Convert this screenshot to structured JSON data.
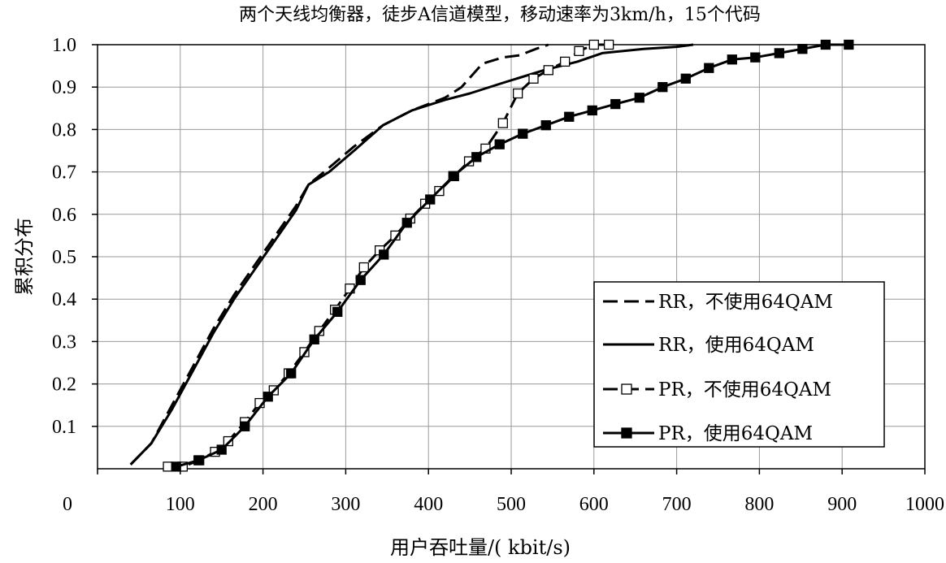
{
  "chart_data": {
    "type": "line",
    "title": "两个天线均衡器，徒步A信道模型，移动速率为3km/h，15个代码",
    "xlabel": "用户吞吐量/( kbit/s)",
    "ylabel": "累积分布",
    "xlim": [
      0,
      1000
    ],
    "ylim": [
      0,
      1.0
    ],
    "x_ticks": [
      0,
      100,
      200,
      300,
      400,
      500,
      600,
      700,
      800,
      900,
      1000
    ],
    "x_tick_labels": [
      "0",
      "100",
      "200",
      "300",
      "400",
      "500",
      "600",
      "700",
      "800",
      "900",
      "1000"
    ],
    "y_ticks": [
      0.1,
      0.2,
      0.3,
      0.4,
      0.5,
      0.6,
      0.7,
      0.8,
      0.9,
      1.0
    ],
    "y_tick_labels": [
      "0.1",
      "0.2",
      "0.3",
      "0.4",
      "0.5",
      "0.6",
      "0.7",
      "0.8",
      "0.9",
      "1.0"
    ],
    "grid": true,
    "legend_position": "bottom-right",
    "series": [
      {
        "name": "RR，不使用64QAM",
        "line": "dashed",
        "marker": "none",
        "color": "#000000",
        "points": [
          [
            40,
            0.01
          ],
          [
            65,
            0.06
          ],
          [
            90,
            0.15
          ],
          [
            115,
            0.24
          ],
          [
            140,
            0.33
          ],
          [
            165,
            0.41
          ],
          [
            190,
            0.48
          ],
          [
            215,
            0.55
          ],
          [
            240,
            0.62
          ],
          [
            255,
            0.67
          ],
          [
            280,
            0.71
          ],
          [
            310,
            0.76
          ],
          [
            345,
            0.81
          ],
          [
            380,
            0.845
          ],
          [
            420,
            0.875
          ],
          [
            440,
            0.9
          ],
          [
            465,
            0.955
          ],
          [
            490,
            0.97
          ],
          [
            510,
            0.975
          ],
          [
            530,
            0.99
          ],
          [
            545,
            1.0
          ]
        ]
      },
      {
        "name": "RR，使用64QAM",
        "line": "solid",
        "marker": "none",
        "color": "#000000",
        "points": [
          [
            40,
            0.01
          ],
          [
            65,
            0.06
          ],
          [
            90,
            0.14
          ],
          [
            115,
            0.23
          ],
          [
            140,
            0.32
          ],
          [
            165,
            0.4
          ],
          [
            190,
            0.47
          ],
          [
            215,
            0.54
          ],
          [
            240,
            0.61
          ],
          [
            255,
            0.67
          ],
          [
            280,
            0.7
          ],
          [
            310,
            0.75
          ],
          [
            345,
            0.81
          ],
          [
            380,
            0.845
          ],
          [
            420,
            0.87
          ],
          [
            450,
            0.885
          ],
          [
            490,
            0.91
          ],
          [
            540,
            0.94
          ],
          [
            580,
            0.96
          ],
          [
            610,
            0.98
          ],
          [
            660,
            0.99
          ],
          [
            700,
            0.995
          ],
          [
            720,
            1.0
          ]
        ]
      },
      {
        "name": "PR，不使用64QAM",
        "line": "dashed",
        "marker": "open-square",
        "color": "#000000",
        "points": [
          [
            85,
            0.005
          ],
          [
            103,
            0.005
          ],
          [
            123,
            0.02
          ],
          [
            142,
            0.04
          ],
          [
            158,
            0.065
          ],
          [
            178,
            0.11
          ],
          [
            196,
            0.155
          ],
          [
            213,
            0.185
          ],
          [
            231,
            0.225
          ],
          [
            250,
            0.275
          ],
          [
            268,
            0.325
          ],
          [
            287,
            0.375
          ],
          [
            305,
            0.425
          ],
          [
            322,
            0.475
          ],
          [
            341,
            0.515
          ],
          [
            360,
            0.55
          ],
          [
            378,
            0.59
          ],
          [
            396,
            0.625
          ],
          [
            413,
            0.655
          ],
          [
            431,
            0.69
          ],
          [
            449,
            0.725
          ],
          [
            469,
            0.755
          ],
          [
            490,
            0.815
          ],
          [
            508,
            0.885
          ],
          [
            527,
            0.92
          ],
          [
            545,
            0.94
          ],
          [
            565,
            0.96
          ],
          [
            582,
            0.985
          ],
          [
            600,
            1.0
          ],
          [
            618,
            1.0
          ]
        ]
      },
      {
        "name": "PR，使用64QAM",
        "line": "solid",
        "marker": "filled-square",
        "color": "#000000",
        "points": [
          [
            95,
            0.005
          ],
          [
            122,
            0.02
          ],
          [
            150,
            0.045
          ],
          [
            178,
            0.1
          ],
          [
            206,
            0.17
          ],
          [
            234,
            0.225
          ],
          [
            262,
            0.305
          ],
          [
            290,
            0.37
          ],
          [
            318,
            0.445
          ],
          [
            346,
            0.505
          ],
          [
            374,
            0.58
          ],
          [
            402,
            0.635
          ],
          [
            430,
            0.69
          ],
          [
            458,
            0.735
          ],
          [
            486,
            0.765
          ],
          [
            514,
            0.79
          ],
          [
            542,
            0.81
          ],
          [
            570,
            0.83
          ],
          [
            598,
            0.845
          ],
          [
            626,
            0.86
          ],
          [
            655,
            0.875
          ],
          [
            683,
            0.9
          ],
          [
            711,
            0.92
          ],
          [
            739,
            0.945
          ],
          [
            767,
            0.965
          ],
          [
            795,
            0.97
          ],
          [
            824,
            0.98
          ],
          [
            852,
            0.99
          ],
          [
            880,
            1.0
          ],
          [
            908,
            1.0
          ]
        ]
      }
    ]
  }
}
